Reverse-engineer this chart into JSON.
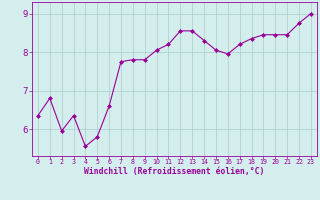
{
  "x": [
    0,
    1,
    2,
    3,
    4,
    5,
    6,
    7,
    8,
    9,
    10,
    11,
    12,
    13,
    14,
    15,
    16,
    17,
    18,
    19,
    20,
    21,
    22,
    23
  ],
  "y": [
    6.35,
    6.8,
    5.95,
    6.35,
    5.55,
    5.8,
    6.6,
    7.75,
    7.8,
    7.8,
    8.05,
    8.2,
    8.55,
    8.55,
    8.3,
    8.05,
    7.95,
    8.2,
    8.35,
    8.45,
    8.45,
    8.45,
    8.75,
    9.0
  ],
  "line_color": "#990099",
  "marker": "D",
  "marker_size": 2,
  "bg_color": "#d4eeed",
  "grid_color": "#aacccc",
  "xlabel": "Windchill (Refroidissement éolien,°C)",
  "xlabel_color": "#990099",
  "tick_color": "#990099",
  "ylim": [
    5.3,
    9.3
  ],
  "xlim": [
    -0.5,
    23.5
  ],
  "yticks": [
    6,
    7,
    8,
    9
  ],
  "xticks": [
    0,
    1,
    2,
    3,
    4,
    5,
    6,
    7,
    8,
    9,
    10,
    11,
    12,
    13,
    14,
    15,
    16,
    17,
    18,
    19,
    20,
    21,
    22,
    23
  ],
  "xtick_labels": [
    "0",
    "1",
    "2",
    "3",
    "4",
    "5",
    "6",
    "7",
    "8",
    "9",
    "10",
    "11",
    "12",
    "13",
    "14",
    "15",
    "16",
    "17",
    "18",
    "19",
    "20",
    "21",
    "22",
    "23"
  ]
}
